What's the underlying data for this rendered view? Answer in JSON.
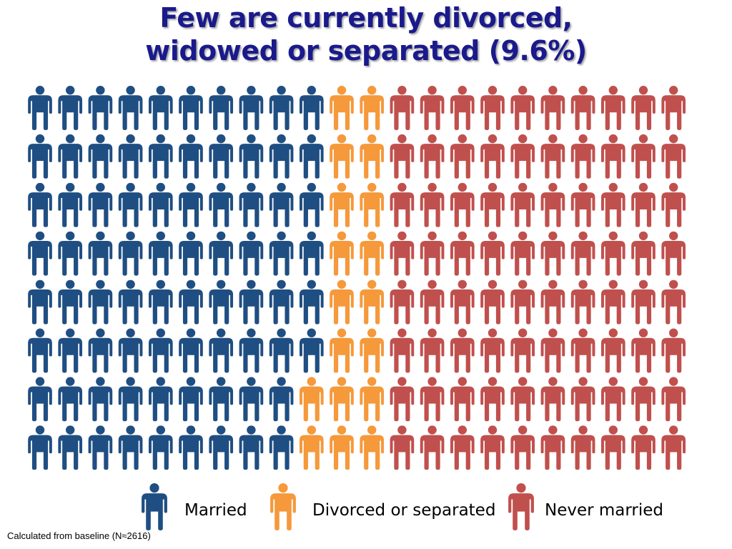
{
  "chart_data": {
    "type": "pictograph",
    "title_lines": [
      "Few are currently divorced,",
      "widowed or separated (9.6%)"
    ],
    "grid": {
      "rows": 8,
      "columns": 22
    },
    "series": [
      {
        "name": "Married",
        "color": "#1f4e82",
        "icon": "person-icon",
        "columns_by_row": [
          10,
          10,
          10,
          10,
          10,
          10,
          9,
          9
        ]
      },
      {
        "name": "Divorced or separated",
        "color": "#f5993b",
        "icon": "person-icon",
        "columns_by_row": [
          2,
          2,
          2,
          2,
          2,
          2,
          3,
          3
        ]
      },
      {
        "name": "Never married",
        "color": "#c0504d",
        "icon": "person-icon",
        "columns_by_row": [
          10,
          10,
          10,
          10,
          10,
          10,
          10,
          10
        ]
      }
    ],
    "legend_placement": "bottom"
  },
  "footnote": "Calculated from baseline (N≈2616)"
}
